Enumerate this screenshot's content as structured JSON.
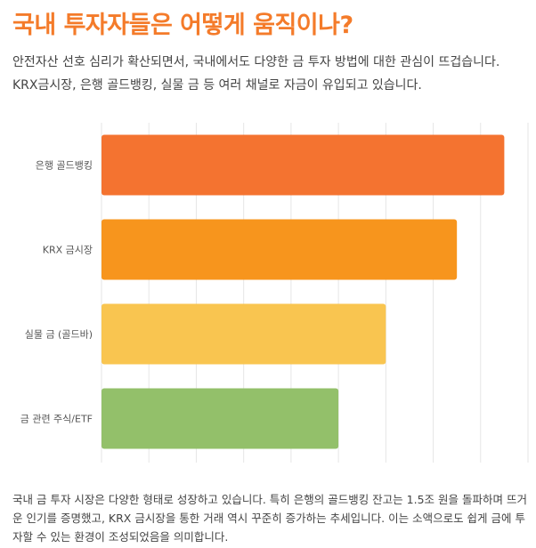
{
  "title": "국내 투자자들은 어떻게 움직이나?",
  "intro": "안전자산 선호 심리가 확산되면서, 국내에서도 다양한 금 투자 방법에 대한 관심이 뜨겁습니다. KRX금시장, 은행 골드뱅킹, 실물 금 등 여러 채널로 자금이 유입되고 있습니다.",
  "conclusion": "국내 금 투자 시장은 다양한 형태로 성장하고 있습니다. 특히 은행의 골드뱅킹 잔고는 1.5조 원을 돌파하며 뜨거운 인기를 증명했고, KRX 금시장을 통한 거래 역시 꾸준히 증가하는 추세입니다. 이는 소액으로도 쉽게 금에 투자할 수 있는 환경이 조성되었음을 의미합니다.",
  "chart_data": {
    "type": "bar",
    "orientation": "horizontal",
    "categories": [
      "은행 골드뱅킹",
      "KRX 금시장",
      "실물 금 (골드바)",
      "금 관련 주식/ETF"
    ],
    "values": [
      85,
      75,
      60,
      50
    ],
    "colors": [
      "#f47330",
      "#f7951d",
      "#f9c550",
      "#93c06a"
    ],
    "xlim": [
      0,
      90
    ],
    "x_tick_step": 10,
    "grid": true,
    "legend": "none",
    "title": "",
    "xlabel": "",
    "ylabel": ""
  }
}
